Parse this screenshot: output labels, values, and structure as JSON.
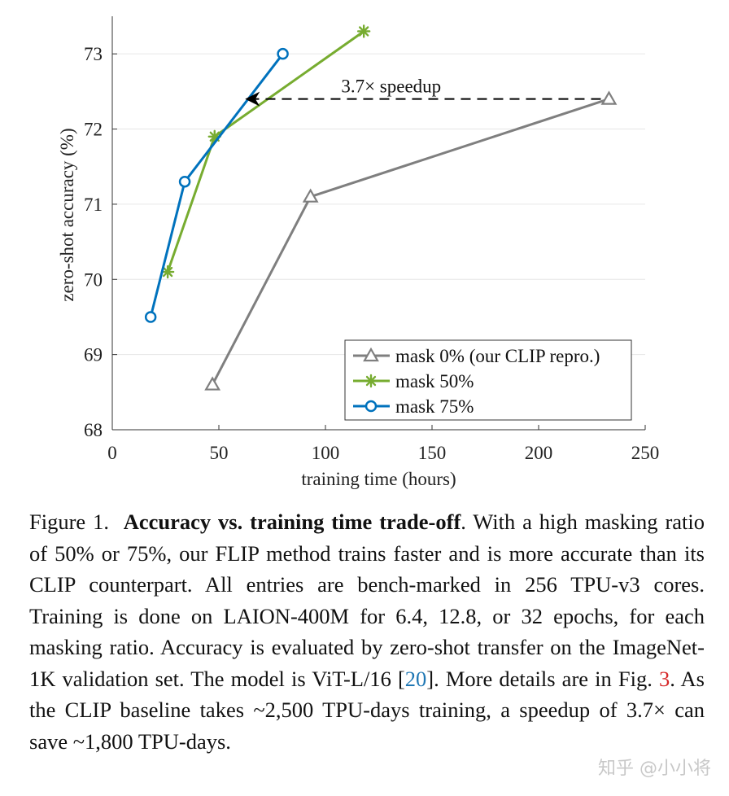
{
  "chart_data": {
    "type": "line",
    "xlabel": "training time (hours)",
    "ylabel": "zero-shot accuracy (%)",
    "xlim": [
      0,
      250
    ],
    "ylim": [
      68,
      73.5
    ],
    "xticks": [
      0,
      50,
      100,
      150,
      200,
      250
    ],
    "yticks": [
      68,
      69,
      70,
      71,
      72,
      73
    ],
    "grid": "horizontal",
    "legend": "bottom-right",
    "series": [
      {
        "name": "mask 0% (our CLIP repro.)",
        "color": "#7f7f7f",
        "marker": "triangle",
        "x": [
          47,
          93,
          233
        ],
        "y": [
          68.6,
          71.1,
          72.4
        ]
      },
      {
        "name": "mask 50%",
        "color": "#77ac30",
        "marker": "asterisk",
        "x": [
          26,
          48,
          118
        ],
        "y": [
          70.1,
          71.9,
          73.3
        ]
      },
      {
        "name": "mask 75%",
        "color": "#0072bd",
        "marker": "circle",
        "x": [
          18,
          34,
          80
        ],
        "y": [
          69.5,
          71.3,
          73.0
        ]
      }
    ],
    "annotation": {
      "text": "3.7× speedup",
      "from_x": 233,
      "to_x": 63,
      "y": 72.4
    }
  },
  "caption": {
    "figure_label": "Figure 1.",
    "title": "Accuracy vs. training time trade-off",
    "body1": ". With a high masking ratio of 50% or 75%, our FLIP method trains faster and is more accurate than its CLIP counterpart. All entries are bench-marked in 256 TPU-v3 cores. Training is done on LAION-400M for 6.4, 12.8, or 32 epochs, for each masking ratio. Accuracy is evaluated by zero-shot transfer on the ImageNet-1K validation set. The model is ViT-L/16 [",
    "ref1": "20",
    "body2": "]. More details are in Fig. ",
    "ref2": "3",
    "body3": ". As the CLIP baseline takes ~2,500 TPU-days training, a speedup of 3.7× can save ~1,800 TPU-days."
  },
  "watermark": "知乎 @小小将"
}
